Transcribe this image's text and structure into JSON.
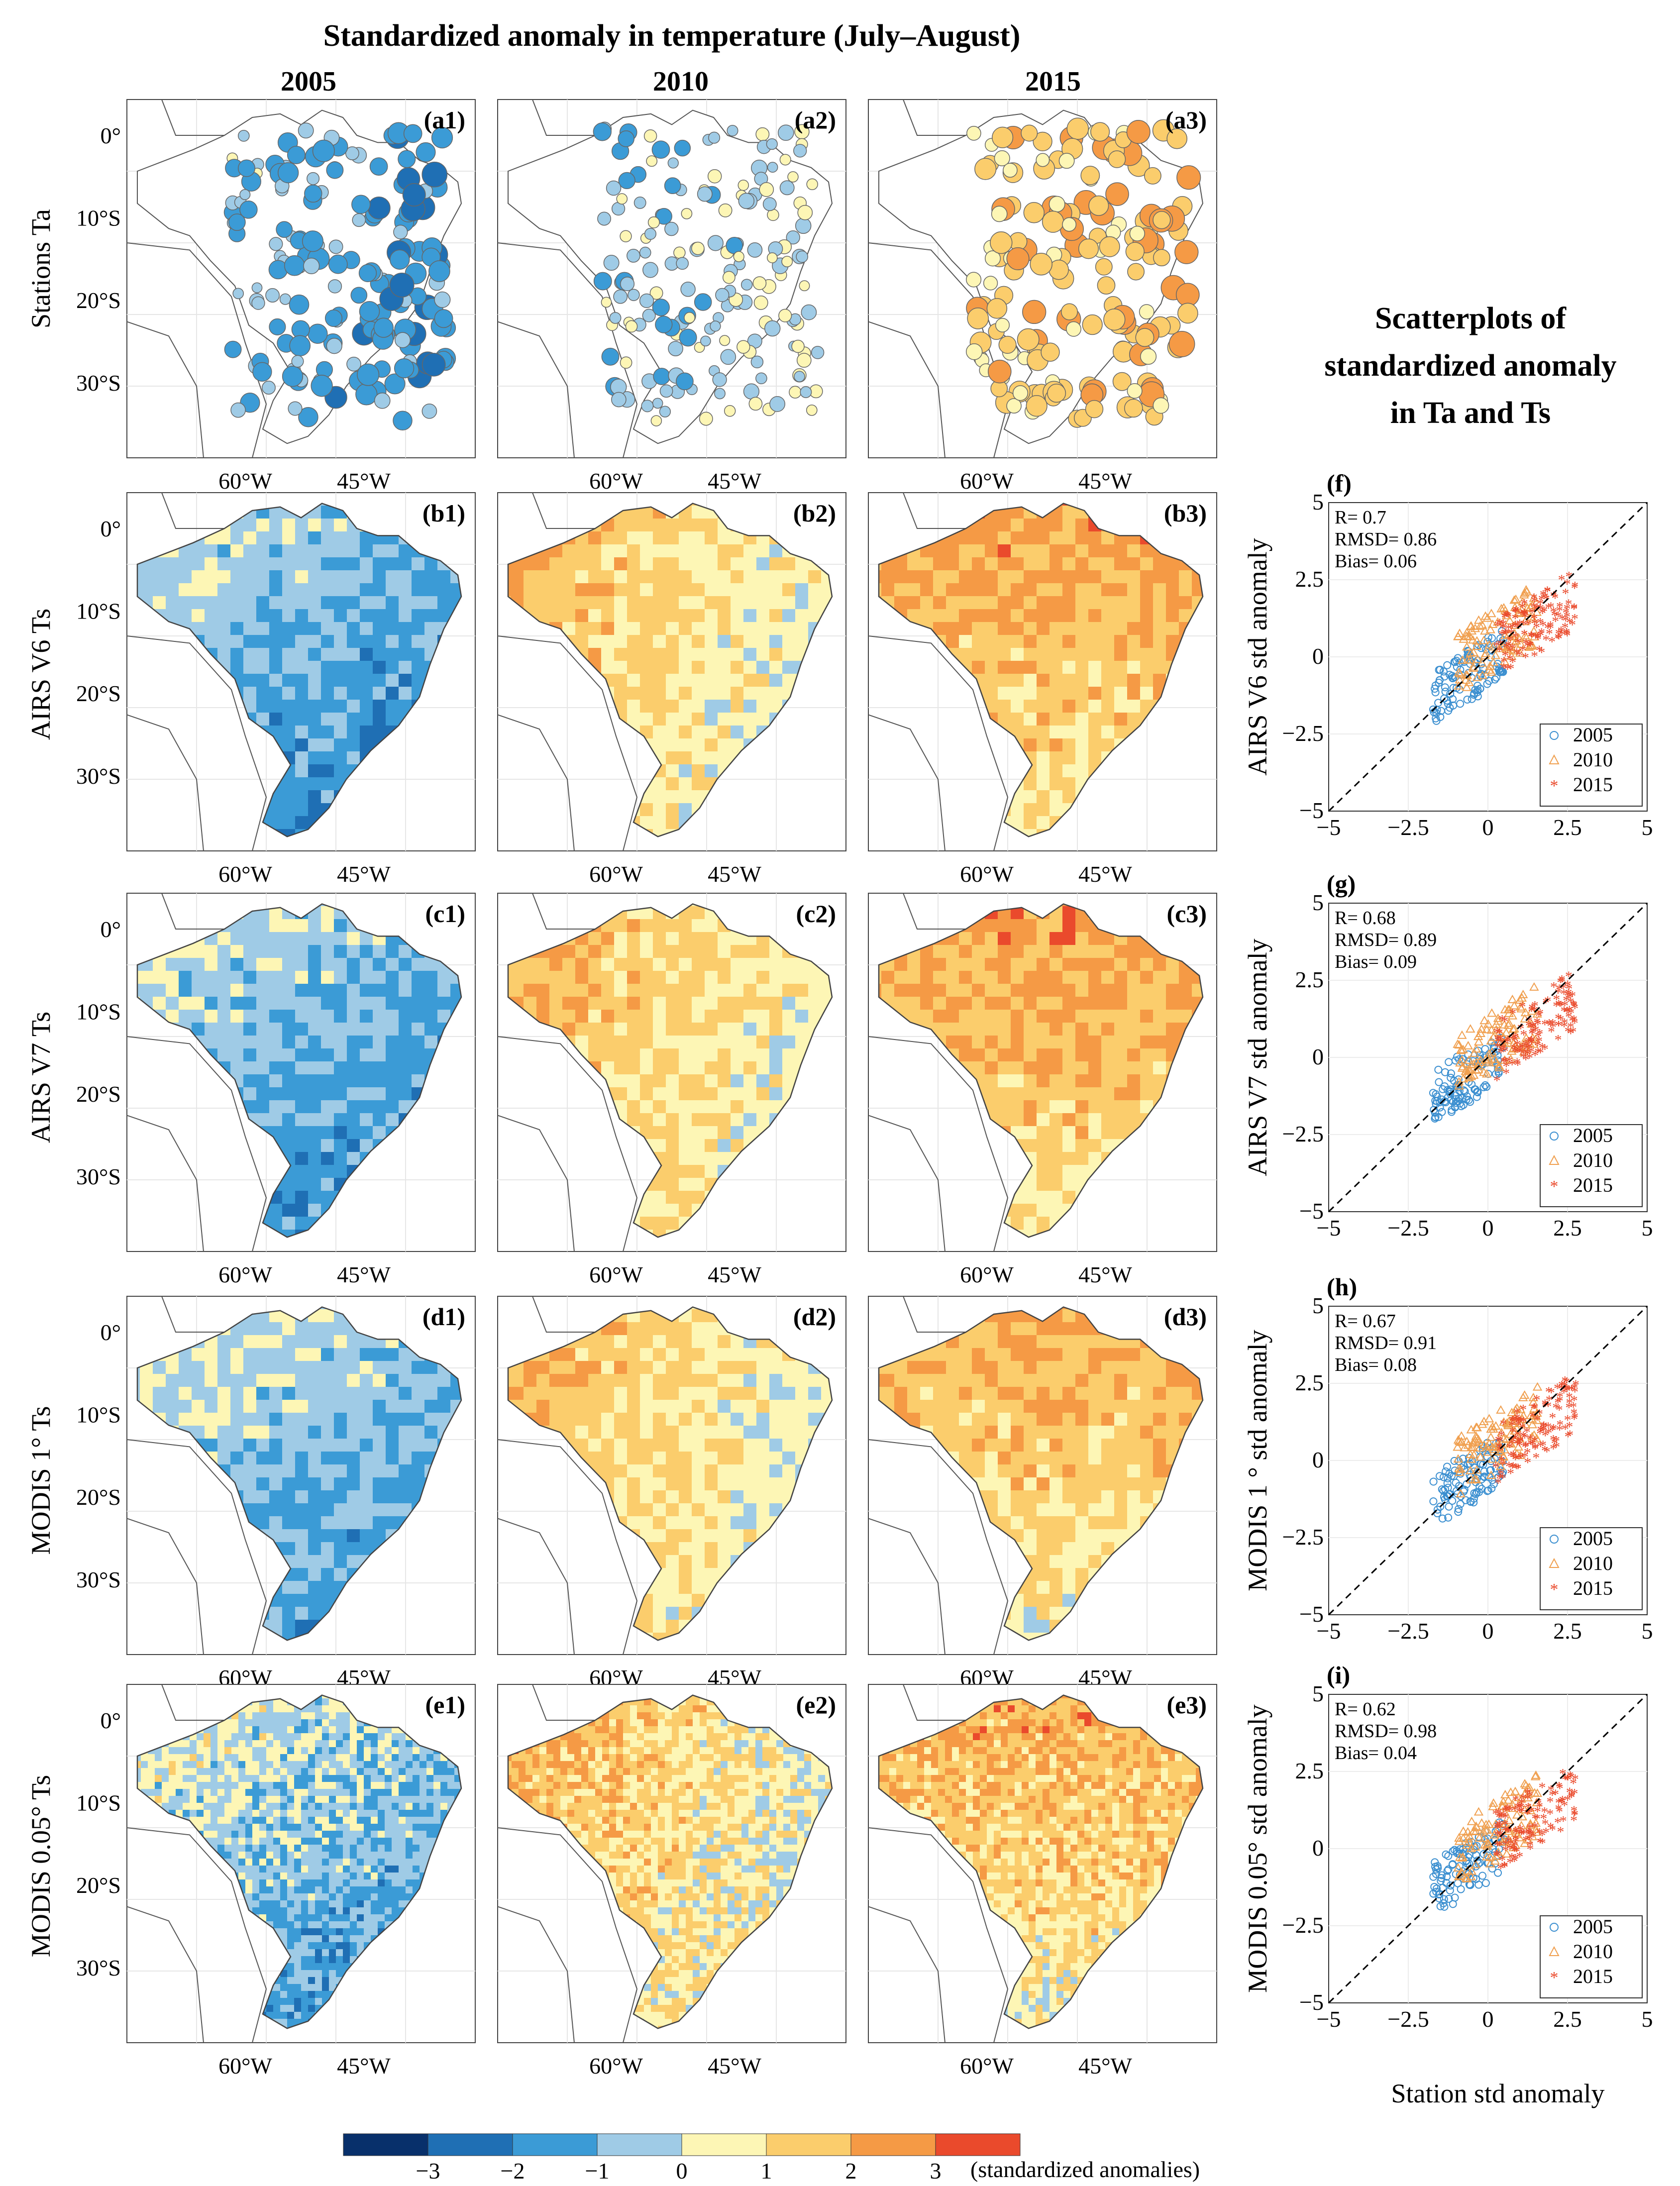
{
  "figure": {
    "title": "Standardized anomaly in temperature (July–August)",
    "years": [
      "2005",
      "2010",
      "2015"
    ],
    "scatter_title": [
      "Scatterplots of",
      "standardized anomaly",
      "in Ta and Ts"
    ],
    "map_lon_ticks": [
      "60°W",
      "45°W"
    ],
    "map_lat_ticks": [
      "0°",
      "10°S",
      "20°S",
      "30°S"
    ],
    "rows": [
      {
        "label": "Stations Ta",
        "panels": [
          "(a1)",
          "(a2)",
          "(a3)"
        ]
      },
      {
        "label": "AIRS  V6 Ts",
        "panels": [
          "(b1)",
          "(b2)",
          "(b3)"
        ]
      },
      {
        "label": "AIRS V7 Ts",
        "panels": [
          "(c1)",
          "(c2)",
          "(c3)"
        ]
      },
      {
        "label": "MODIS 1° Ts",
        "panels": [
          "(d1)",
          "(d2)",
          "(d3)"
        ]
      },
      {
        "label": "MODIS 0.05° Ts",
        "panels": [
          "(e1)",
          "(e2)",
          "(e3)"
        ]
      }
    ],
    "map_dominant_anomaly": [
      [
        -1.2,
        -0.3,
        1.5
      ],
      [
        -1.0,
        0.9,
        1.6
      ],
      [
        -0.9,
        1.0,
        1.6
      ],
      [
        -0.7,
        0.9,
        1.3
      ],
      [
        -0.6,
        1.0,
        1.3
      ]
    ],
    "colorbar": {
      "label": "(standardized anomalies)",
      "ticks": [
        "−3",
        "−2",
        "−1",
        "0",
        "1",
        "2",
        "3"
      ],
      "colors": [
        "#08306b",
        "#1f6fb4",
        "#3b9bd6",
        "#9fcbe6",
        "#fdf6b5",
        "#fbcd6c",
        "#f59a45",
        "#ea4a2c"
      ]
    },
    "scatter_xlabel": "Station std anomaly"
  },
  "chart_data": [
    {
      "type": "scatter",
      "panel": "(f)",
      "ylabel": "AIRS  V6 std anomaly",
      "stats": [
        "R= 0.7",
        "RMSD= 0.86",
        "Bias= 0.06"
      ],
      "xlim": [
        -5,
        5
      ],
      "ylim": [
        -5,
        5
      ],
      "x_ticks": [
        "−5",
        "−2.5",
        "0",
        "2.5",
        "5"
      ],
      "y_ticks": [
        "5",
        "2.5",
        "0",
        "−2.5",
        "−5"
      ],
      "series": [
        {
          "name": "2005",
          "color": "#3b8fd0",
          "marker": "circle"
        },
        {
          "name": "2010",
          "color": "#f0a050",
          "marker": "triangle"
        },
        {
          "name": "2015",
          "color": "#ea4a2c",
          "marker": "star"
        }
      ]
    },
    {
      "type": "scatter",
      "panel": "(g)",
      "ylabel": "AIRS V7 std anomaly",
      "stats": [
        "R= 0.68",
        "RMSD= 0.89",
        "Bias= 0.09"
      ],
      "xlim": [
        -5,
        5
      ],
      "ylim": [
        -5,
        5
      ],
      "x_ticks": [
        "−5",
        "−2.5",
        "0",
        "2.5",
        "5"
      ],
      "y_ticks": [
        "5",
        "2.5",
        "0",
        "−2.5",
        "−5"
      ],
      "series": [
        {
          "name": "2005",
          "color": "#3b8fd0",
          "marker": "circle"
        },
        {
          "name": "2010",
          "color": "#f0a050",
          "marker": "triangle"
        },
        {
          "name": "2015",
          "color": "#ea4a2c",
          "marker": "star"
        }
      ]
    },
    {
      "type": "scatter",
      "panel": "(h)",
      "ylabel": "MODIS 1 ° std anomaly",
      "stats": [
        "R= 0.67",
        "RMSD= 0.91",
        "Bias= 0.08"
      ],
      "xlim": [
        -5,
        5
      ],
      "ylim": [
        -5,
        5
      ],
      "x_ticks": [
        "−5",
        "−2.5",
        "0",
        "2.5",
        "5"
      ],
      "y_ticks": [
        "5",
        "2.5",
        "0",
        "−2.5",
        "−5"
      ],
      "series": [
        {
          "name": "2005",
          "color": "#3b8fd0",
          "marker": "circle"
        },
        {
          "name": "2010",
          "color": "#f0a050",
          "marker": "triangle"
        },
        {
          "name": "2015",
          "color": "#ea4a2c",
          "marker": "star"
        }
      ]
    },
    {
      "type": "scatter",
      "panel": "(i)",
      "ylabel": "MODIS 0.05° std anomaly",
      "stats": [
        "R= 0.62",
        "RMSD= 0.98",
        "Bias= 0.04"
      ],
      "xlim": [
        -5,
        5
      ],
      "ylim": [
        -5,
        5
      ],
      "x_ticks": [
        "−5",
        "−2.5",
        "0",
        "2.5",
        "5"
      ],
      "y_ticks": [
        "5",
        "2.5",
        "0",
        "−2.5",
        "−5"
      ],
      "series": [
        {
          "name": "2005",
          "color": "#3b8fd0",
          "marker": "circle"
        },
        {
          "name": "2010",
          "color": "#f0a050",
          "marker": "triangle"
        },
        {
          "name": "2015",
          "color": "#ea4a2c",
          "marker": "star"
        }
      ]
    }
  ]
}
